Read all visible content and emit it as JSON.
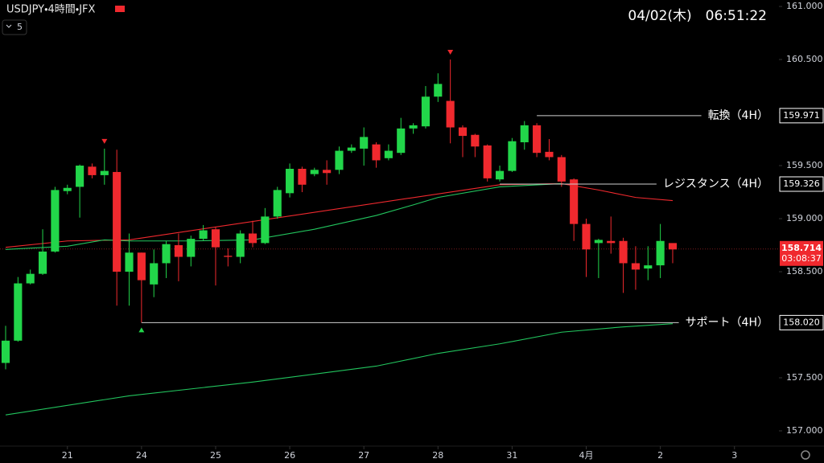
{
  "chart_data": {
    "type": "candlestick",
    "title": "USDJPY・4時間・JFX",
    "badge": "5",
    "datetime": "04/02(木)　06:51:22",
    "up_color": "#22d64a",
    "down_color": "#f0292e",
    "x": [
      0,
      1,
      2,
      3,
      4,
      5,
      6,
      7,
      8,
      9,
      10,
      11,
      12,
      13,
      14,
      15,
      16,
      17,
      18,
      19,
      20,
      21,
      22,
      23,
      24,
      25,
      26,
      27,
      28,
      29,
      30,
      31,
      32,
      33,
      34,
      35,
      36,
      37,
      38,
      39,
      40,
      41,
      42,
      43,
      44,
      45,
      46,
      47,
      48,
      49,
      50,
      51,
      52,
      53,
      54
    ],
    "open": [
      157.64,
      157.85,
      158.39,
      158.48,
      158.69,
      159.26,
      159.3,
      159.49,
      159.41,
      159.44,
      158.5,
      158.68,
      158.38,
      158.58,
      158.75,
      158.64,
      158.81,
      158.9,
      158.65,
      158.64,
      158.86,
      158.77,
      159.02,
      159.24,
      159.47,
      159.42,
      159.46,
      159.46,
      159.64,
      159.66,
      159.7,
      159.57,
      159.62,
      159.85,
      159.87,
      160.15,
      160.11,
      159.86,
      159.79,
      159.69,
      159.37,
      159.45,
      159.72,
      159.88,
      159.63,
      159.58,
      159.37,
      158.95,
      158.77,
      158.79,
      158.79,
      158.58,
      158.53,
      158.56,
      158.77
    ],
    "high": [
      157.99,
      158.45,
      158.52,
      158.9,
      159.3,
      159.32,
      159.51,
      159.52,
      159.66,
      159.65,
      158.86,
      158.68,
      158.71,
      158.79,
      158.86,
      158.84,
      158.94,
      158.92,
      158.72,
      158.89,
      158.98,
      159.1,
      159.3,
      159.52,
      159.49,
      159.48,
      159.55,
      159.68,
      159.7,
      159.86,
      159.72,
      159.7,
      159.95,
      159.9,
      160.25,
      160.37,
      160.5,
      159.88,
      159.8,
      159.7,
      159.5,
      159.76,
      159.92,
      159.9,
      159.75,
      159.6,
      159.38,
      159.0,
      158.81,
      159.02,
      158.82,
      158.74,
      158.74,
      158.95,
      158.75
    ],
    "low": [
      157.58,
      157.84,
      158.38,
      158.47,
      158.68,
      159.23,
      159.01,
      159.38,
      159.32,
      158.18,
      158.18,
      158.02,
      158.26,
      158.44,
      158.41,
      158.55,
      158.79,
      158.37,
      158.55,
      158.58,
      158.73,
      158.76,
      159.0,
      159.2,
      159.25,
      159.4,
      159.32,
      159.42,
      159.62,
      159.5,
      159.48,
      159.55,
      159.6,
      159.8,
      159.85,
      160.1,
      159.71,
      159.58,
      159.58,
      159.35,
      159.35,
      159.44,
      159.65,
      159.58,
      159.55,
      159.3,
      158.79,
      158.45,
      158.44,
      158.67,
      158.3,
      158.33,
      158.42,
      158.44,
      158.58
    ],
    "close": [
      157.85,
      158.39,
      158.48,
      158.69,
      159.27,
      159.29,
      159.5,
      159.41,
      159.45,
      158.5,
      158.68,
      158.42,
      158.58,
      158.76,
      158.64,
      158.81,
      158.89,
      158.73,
      158.64,
      158.86,
      158.77,
      159.02,
      159.27,
      159.47,
      159.32,
      159.46,
      159.43,
      159.64,
      159.67,
      159.77,
      159.55,
      159.64,
      159.85,
      159.88,
      160.15,
      160.27,
      159.86,
      159.78,
      159.68,
      159.38,
      159.45,
      159.73,
      159.88,
      159.62,
      159.58,
      159.35,
      158.95,
      158.71,
      158.8,
      158.77,
      158.58,
      158.52,
      158.56,
      158.79,
      158.71
    ],
    "lines": [
      {
        "color": "#f0292e",
        "x": [
          0,
          5,
          10,
          40,
          45,
          48,
          51,
          54
        ],
        "values": [
          158.73,
          158.79,
          158.8,
          159.32,
          159.33,
          159.27,
          159.2,
          159.17
        ]
      },
      {
        "color": "#22c55e",
        "x": [
          0,
          5,
          8,
          10,
          15,
          20,
          25,
          30,
          33,
          35,
          40,
          45
        ],
        "values": [
          158.71,
          158.74,
          158.8,
          158.79,
          158.79,
          158.8,
          158.9,
          159.03,
          159.13,
          159.2,
          159.3,
          159.33
        ]
      },
      {
        "color": "#22c55e",
        "x": [
          0,
          10,
          20,
          30,
          35,
          40,
          45,
          50,
          54
        ],
        "values": [
          157.15,
          157.33,
          157.46,
          157.61,
          157.73,
          157.82,
          157.93,
          157.98,
          158.01
        ]
      }
    ],
    "levels": [
      {
        "label": "転換（4H）",
        "value": 159.971,
        "x": 43
      },
      {
        "label": "レジスタンス（4H）",
        "value": 159.326,
        "x": 40
      },
      {
        "label": "サポート（4H）",
        "value": 158.02,
        "value_label": "158.020",
        "x": 11
      }
    ],
    "markers": [
      {
        "x": 8,
        "position": "above",
        "color": "#f0292e"
      },
      {
        "x": 36,
        "position": "above",
        "color": "#f0292e"
      },
      {
        "x": 11,
        "position": "below",
        "color": "#22d64a"
      }
    ],
    "last": {
      "value": 158.714,
      "countdown": "03:08:37"
    },
    "xlim": [
      -0.456,
      62.6
    ],
    "ylim": [
      156.856,
      161.061
    ],
    "xticks": [
      {
        "value": 5,
        "label": "21"
      },
      {
        "value": 11,
        "label": "24"
      },
      {
        "value": 17,
        "label": "25"
      },
      {
        "value": 23,
        "label": "26"
      },
      {
        "value": 29,
        "label": "27"
      },
      {
        "value": 35,
        "label": "28"
      },
      {
        "value": 41,
        "label": "31"
      },
      {
        "value": 47,
        "label": "4月"
      },
      {
        "value": 53,
        "label": "2"
      },
      {
        "value": 59,
        "label": "3"
      }
    ],
    "yticks": [
      {
        "value": 157,
        "label": "157.000"
      },
      {
        "value": 157.5,
        "label": "157.500"
      },
      {
        "value": 158,
        "label": "158.000"
      },
      {
        "value": 158.5,
        "label": "158.500"
      },
      {
        "value": 159,
        "label": "159.000"
      },
      {
        "value": 159.5,
        "label": "159.500"
      },
      {
        "value": 160,
        "label": "160.000"
      },
      {
        "value": 160.5,
        "label": "160.500"
      },
      {
        "value": 161,
        "label": "161.000"
      }
    ]
  }
}
